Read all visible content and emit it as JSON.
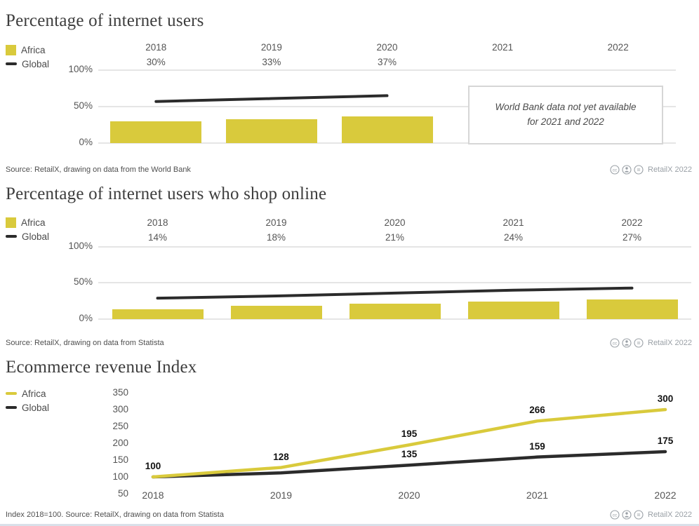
{
  "colors": {
    "africa_yellow": "#d9ca3c",
    "global_black": "#2b2b2b",
    "gridline": "#e5e5e5"
  },
  "chart_data": [
    {
      "type": "bar",
      "title": "Percentage of internet users",
      "categories": [
        "2018",
        "2019",
        "2020",
        "2021",
        "2022"
      ],
      "category_value_labels": [
        "30%",
        "33%",
        "37%",
        "",
        ""
      ],
      "series": [
        {
          "name": "Africa",
          "type": "bar",
          "color": "#d9ca3c",
          "values": [
            30,
            33,
            37,
            null,
            null
          ]
        },
        {
          "name": "Global",
          "type": "line",
          "color": "#2b2b2b",
          "values": [
            57,
            61,
            65,
            null,
            null
          ]
        }
      ],
      "ylabel_ticks": [
        "100%",
        "50%",
        "0%"
      ],
      "ylim": [
        0,
        100
      ],
      "grid": "horizontal",
      "legend_position": "left",
      "note": "World Bank data not yet available for 2021 and 2022",
      "source": "Source: RetailX, drawing on data from the World Bank",
      "badge": "RetailX 2022"
    },
    {
      "type": "bar",
      "title": "Percentage of internet users who shop online",
      "categories": [
        "2018",
        "2019",
        "2020",
        "2021",
        "2022"
      ],
      "category_value_labels": [
        "14%",
        "18%",
        "21%",
        "24%",
        "27%"
      ],
      "series": [
        {
          "name": "Africa",
          "type": "bar",
          "color": "#d9ca3c",
          "values": [
            14,
            18,
            21,
            24,
            27
          ]
        },
        {
          "name": "Global",
          "type": "line",
          "color": "#2b2b2b",
          "values": [
            29,
            32,
            36,
            40,
            43
          ]
        }
      ],
      "ylabel_ticks": [
        "100%",
        "50%",
        "0%"
      ],
      "ylim": [
        0,
        100
      ],
      "grid": "horizontal",
      "legend_position": "left",
      "source": "Source: RetailX, drawing on data from Statista",
      "badge": "RetailX 2022"
    },
    {
      "type": "line",
      "title": "Ecommerce revenue Index",
      "categories": [
        "2018",
        "2019",
        "2020",
        "2021",
        "2022"
      ],
      "series": [
        {
          "name": "Africa",
          "color": "#d9ca3c",
          "values": [
            100,
            128,
            195,
            266,
            300
          ],
          "point_labels": [
            "",
            "128",
            "195",
            "266",
            "300"
          ]
        },
        {
          "name": "Global",
          "color": "#2b2b2b",
          "values": [
            100,
            112,
            135,
            159,
            175
          ],
          "point_labels": [
            "100",
            "",
            "135",
            "159",
            "175"
          ]
        }
      ],
      "yticks": [
        "350",
        "300",
        "250",
        "200",
        "150",
        "100",
        "50"
      ],
      "ylim": [
        50,
        350
      ],
      "grid": "off",
      "legend_position": "left",
      "source": "Index 2018=100. Source: RetailX, drawing on data from Statista",
      "badge": "RetailX 2022"
    }
  ]
}
